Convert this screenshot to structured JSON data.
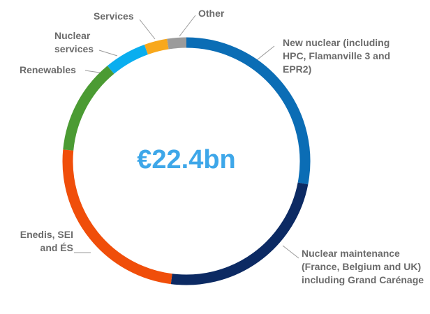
{
  "chart_data": {
    "type": "donut",
    "center_label": "€22.4bn",
    "categories": [
      "New nuclear (including HPC, Flamanville 3 and EPR2)",
      "Nuclear maintenance (France, Belgium and UK) including Grand Carénage",
      "Enedis, SEI and ÉS",
      "Renewables",
      "Nuclear services",
      "Services",
      "Other"
    ],
    "values": [
      28,
      24,
      24.5,
      12.5,
      5.5,
      3,
      2.5
    ],
    "colors": [
      "#0b6db5",
      "#0c2a63",
      "#f04e0a",
      "#4b9b33",
      "#0aaeef",
      "#f8a81c",
      "#9b9b9b"
    ]
  }
}
